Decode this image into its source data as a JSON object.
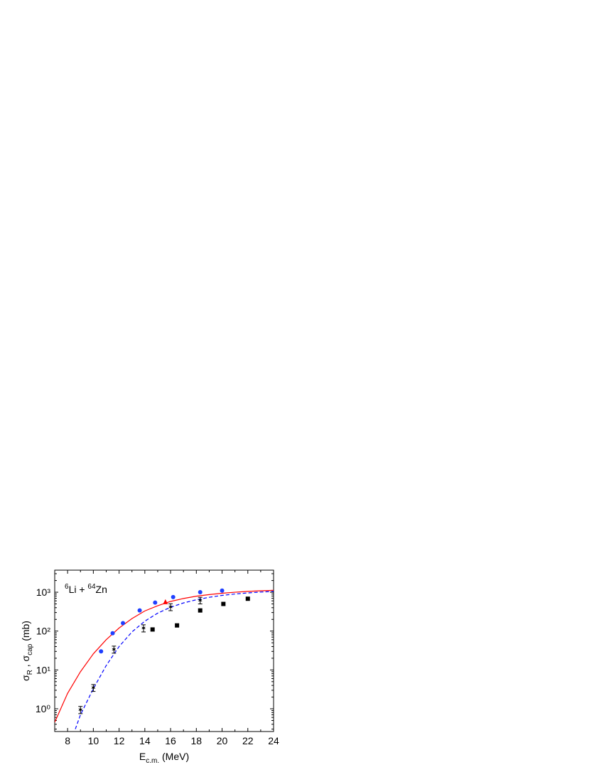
{
  "chart_data": {
    "type": "scatter",
    "log_y": true,
    "annotation": [
      "6",
      "Li + ",
      "64",
      "Zn"
    ],
    "xlabel": [
      "E",
      "c.m.",
      " (MeV)"
    ],
    "ylabel": [
      "σ",
      "R",
      " , σ",
      "cap",
      " (mb)"
    ],
    "xlim": [
      7,
      24
    ],
    "xticks": [
      8,
      10,
      12,
      14,
      16,
      18,
      20,
      22,
      24
    ],
    "ylim": [
      0.26,
      3700
    ],
    "yticks": [
      {
        "value": 1,
        "label": "10⁰"
      },
      {
        "value": 10,
        "label": "10¹"
      },
      {
        "value": 100,
        "label": "10²"
      },
      {
        "value": 1000,
        "label": "10³"
      }
    ],
    "series": [
      {
        "style": "solid",
        "color": "#ff0000",
        "x": [
          7,
          8,
          9,
          10,
          11,
          12,
          13,
          14,
          15,
          16,
          17,
          18,
          19,
          20,
          21,
          22,
          23,
          24
        ],
        "values": [
          0.45,
          2.5,
          9,
          26,
          60,
          120,
          210,
          330,
          450,
          580,
          690,
          790,
          870,
          940,
          1000,
          1050,
          1090,
          1120
        ]
      },
      {
        "style": "dashed",
        "color": "#0000ff",
        "x": [
          8.6,
          9,
          10,
          11,
          12,
          13,
          14,
          15,
          16,
          17,
          18,
          19,
          20,
          21,
          22,
          23,
          24
        ],
        "values": [
          0.3,
          0.7,
          3.3,
          13,
          40,
          95,
          180,
          290,
          410,
          530,
          640,
          740,
          830,
          900,
          960,
          1010,
          1050
        ]
      },
      {
        "marker": "circle",
        "color": "#1f3fff",
        "x": [
          10.6,
          11.5,
          12.3,
          13.6,
          14.8,
          16.2,
          18.3,
          20.0
        ],
        "values": [
          30,
          88,
          160,
          340,
          540,
          750,
          1000,
          1100
        ]
      },
      {
        "marker": "triangle",
        "color": "#ff0000",
        "x": [
          15.6
        ],
        "values": [
          560
        ]
      },
      {
        "marker": "star",
        "color": "#000000",
        "x": [
          9.0,
          10.0,
          11.6,
          13.9,
          16.0,
          18.3
        ],
        "values": [
          0.95,
          3.5,
          34,
          120,
          420,
          620
        ],
        "errors": [
          0.2,
          0.7,
          7,
          25,
          85,
          120
        ]
      },
      {
        "marker": "square",
        "color": "#000000",
        "x": [
          14.6,
          16.5,
          18.3,
          20.1,
          22.0
        ],
        "values": [
          110,
          140,
          340,
          500,
          680
        ]
      }
    ]
  }
}
